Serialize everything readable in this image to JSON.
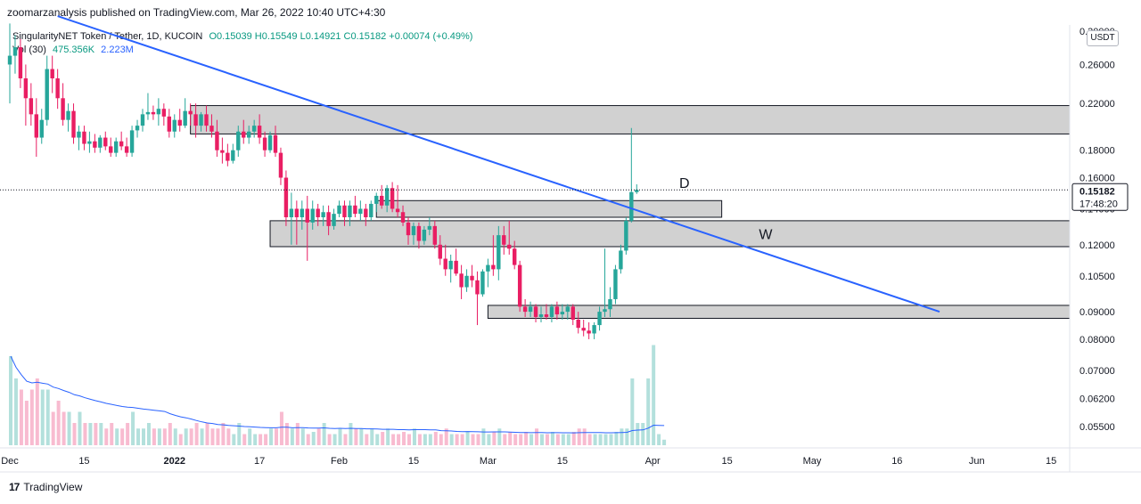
{
  "header": {
    "publisher": "zoomarzanalysis published on TradingView.com, Mar 26, 2022 10:40 UTC+4:30"
  },
  "legend": {
    "symbol": "SingularityNET Token / Tether, 1D, KUCOIN",
    "ohlc": "O0.15039 H0.15549 L0.14921 C0.15182 +0.00074 (+0.49%)",
    "vol_label": "Vol (30)",
    "vol_value": "475.356K",
    "vol_ma": "2.223M"
  },
  "price_axis": {
    "currency": "USDT",
    "last_price": "0.15182",
    "countdown": "17:48:20"
  },
  "footer": {
    "brand": "TradingView",
    "logo": "17"
  },
  "colors": {
    "up": "#26a69a",
    "down": "#e91e63",
    "trendline": "#2962ff",
    "zone": "#d1d1d1"
  },
  "chart_data": {
    "type": "candlestick",
    "title": "SingularityNET Token / Tether, 1D, KUCOIN",
    "y_scale": "log",
    "ylim": [
      0.05,
      0.33
    ],
    "y_ticks": [
      "0.05500",
      "0.06200",
      "0.07000",
      "0.08000",
      "0.09000",
      "0.10500",
      "0.12000",
      "0.14000",
      "0.16000",
      "0.18000",
      "0.22000",
      "0.26000",
      "0.30000"
    ],
    "y_tick_values": [
      0.055,
      0.062,
      0.07,
      0.08,
      0.09,
      0.105,
      0.12,
      0.14,
      0.16,
      0.18,
      0.22,
      0.26,
      0.3
    ],
    "x_ticks": [
      "Dec",
      "15",
      "2022",
      "17",
      "Feb",
      "15",
      "Mar",
      "15",
      "Apr",
      "15",
      "May",
      "16",
      "Jun",
      "15"
    ],
    "x_tick_days": [
      0,
      14,
      31,
      47,
      62,
      76,
      90,
      104,
      121,
      135,
      151,
      167,
      182,
      196
    ],
    "x_start": "2021-12-01",
    "annotations": [
      {
        "text": "D",
        "date": "2022-04-06",
        "price": 0.153
      },
      {
        "text": "W",
        "date": "2022-04-21",
        "price": 0.123
      }
    ],
    "zones": [
      {
        "date_start": "2022-01-04",
        "date_end": "2022-06-30",
        "price_low": 0.193,
        "price_high": 0.218
      },
      {
        "date_start": "2022-02-08",
        "date_end": "2022-04-14",
        "price_low": 0.135,
        "price_high": 0.145
      },
      {
        "date_start": "2022-01-19",
        "date_end": "2022-06-30",
        "price_low": 0.119,
        "price_high": 0.133
      },
      {
        "date_start": "2022-03-01",
        "date_end": "2022-06-30",
        "price_low": 0.0875,
        "price_high": 0.0925
      }
    ],
    "trendline": {
      "start": {
        "date": "2021-12-10",
        "price": 0.32
      },
      "end": {
        "date": "2022-05-25",
        "price": 0.09
      }
    },
    "last_price_line": 0.15182,
    "candles": [
      {
        "date": "2021-12-01",
        "o": 0.26,
        "h": 0.31,
        "l": 0.22,
        "c": 0.27
      },
      {
        "date": "2021-12-02",
        "o": 0.27,
        "h": 0.295,
        "l": 0.25,
        "c": 0.28
      },
      {
        "date": "2021-12-03",
        "o": 0.28,
        "h": 0.29,
        "l": 0.235,
        "c": 0.245
      },
      {
        "date": "2021-12-04",
        "o": 0.245,
        "h": 0.26,
        "l": 0.2,
        "c": 0.225
      },
      {
        "date": "2021-12-05",
        "o": 0.225,
        "h": 0.24,
        "l": 0.2,
        "c": 0.21
      },
      {
        "date": "2021-12-06",
        "o": 0.21,
        "h": 0.225,
        "l": 0.175,
        "c": 0.19
      },
      {
        "date": "2021-12-07",
        "o": 0.19,
        "h": 0.215,
        "l": 0.185,
        "c": 0.205
      },
      {
        "date": "2021-12-08",
        "o": 0.205,
        "h": 0.27,
        "l": 0.2,
        "c": 0.255
      },
      {
        "date": "2021-12-09",
        "o": 0.255,
        "h": 0.27,
        "l": 0.23,
        "c": 0.245
      },
      {
        "date": "2021-12-10",
        "o": 0.245,
        "h": 0.255,
        "l": 0.215,
        "c": 0.225
      },
      {
        "date": "2021-12-11",
        "o": 0.225,
        "h": 0.24,
        "l": 0.2,
        "c": 0.205
      },
      {
        "date": "2021-12-12",
        "o": 0.205,
        "h": 0.22,
        "l": 0.195,
        "c": 0.213
      },
      {
        "date": "2021-12-13",
        "o": 0.213,
        "h": 0.22,
        "l": 0.185,
        "c": 0.19
      },
      {
        "date": "2021-12-14",
        "o": 0.19,
        "h": 0.2,
        "l": 0.18,
        "c": 0.195
      },
      {
        "date": "2021-12-15",
        "o": 0.195,
        "h": 0.2,
        "l": 0.18,
        "c": 0.185
      },
      {
        "date": "2021-12-16",
        "o": 0.185,
        "h": 0.195,
        "l": 0.178,
        "c": 0.187
      },
      {
        "date": "2021-12-17",
        "o": 0.187,
        "h": 0.193,
        "l": 0.178,
        "c": 0.182
      },
      {
        "date": "2021-12-18",
        "o": 0.182,
        "h": 0.192,
        "l": 0.178,
        "c": 0.19
      },
      {
        "date": "2021-12-19",
        "o": 0.19,
        "h": 0.195,
        "l": 0.18,
        "c": 0.183
      },
      {
        "date": "2021-12-20",
        "o": 0.183,
        "h": 0.19,
        "l": 0.175,
        "c": 0.178
      },
      {
        "date": "2021-12-21",
        "o": 0.178,
        "h": 0.19,
        "l": 0.175,
        "c": 0.187
      },
      {
        "date": "2021-12-22",
        "o": 0.187,
        "h": 0.195,
        "l": 0.18,
        "c": 0.183
      },
      {
        "date": "2021-12-23",
        "o": 0.183,
        "h": 0.19,
        "l": 0.175,
        "c": 0.178
      },
      {
        "date": "2021-12-24",
        "o": 0.178,
        "h": 0.2,
        "l": 0.175,
        "c": 0.196
      },
      {
        "date": "2021-12-25",
        "o": 0.196,
        "h": 0.205,
        "l": 0.19,
        "c": 0.2
      },
      {
        "date": "2021-12-26",
        "o": 0.2,
        "h": 0.215,
        "l": 0.195,
        "c": 0.21
      },
      {
        "date": "2021-12-27",
        "o": 0.21,
        "h": 0.23,
        "l": 0.205,
        "c": 0.212
      },
      {
        "date": "2021-12-28",
        "o": 0.212,
        "h": 0.218,
        "l": 0.205,
        "c": 0.21
      },
      {
        "date": "2021-12-29",
        "o": 0.21,
        "h": 0.225,
        "l": 0.2,
        "c": 0.215
      },
      {
        "date": "2021-12-30",
        "o": 0.215,
        "h": 0.22,
        "l": 0.2,
        "c": 0.208
      },
      {
        "date": "2021-12-31",
        "o": 0.208,
        "h": 0.215,
        "l": 0.19,
        "c": 0.195
      },
      {
        "date": "2022-01-01",
        "o": 0.195,
        "h": 0.21,
        "l": 0.19,
        "c": 0.205
      },
      {
        "date": "2022-01-02",
        "o": 0.205,
        "h": 0.215,
        "l": 0.195,
        "c": 0.2
      },
      {
        "date": "2022-01-03",
        "o": 0.2,
        "h": 0.225,
        "l": 0.198,
        "c": 0.213
      },
      {
        "date": "2022-01-04",
        "o": 0.213,
        "h": 0.22,
        "l": 0.2,
        "c": 0.21
      },
      {
        "date": "2022-01-05",
        "o": 0.21,
        "h": 0.22,
        "l": 0.19,
        "c": 0.2
      },
      {
        "date": "2022-01-06",
        "o": 0.2,
        "h": 0.212,
        "l": 0.195,
        "c": 0.21
      },
      {
        "date": "2022-01-07",
        "o": 0.21,
        "h": 0.218,
        "l": 0.195,
        "c": 0.2
      },
      {
        "date": "2022-01-08",
        "o": 0.2,
        "h": 0.21,
        "l": 0.19,
        "c": 0.195
      },
      {
        "date": "2022-01-09",
        "o": 0.195,
        "h": 0.205,
        "l": 0.175,
        "c": 0.18
      },
      {
        "date": "2022-01-10",
        "o": 0.18,
        "h": 0.19,
        "l": 0.17,
        "c": 0.178
      },
      {
        "date": "2022-01-11",
        "o": 0.178,
        "h": 0.185,
        "l": 0.168,
        "c": 0.172
      },
      {
        "date": "2022-01-12",
        "o": 0.172,
        "h": 0.185,
        "l": 0.17,
        "c": 0.18
      },
      {
        "date": "2022-01-13",
        "o": 0.18,
        "h": 0.2,
        "l": 0.175,
        "c": 0.195
      },
      {
        "date": "2022-01-14",
        "o": 0.195,
        "h": 0.205,
        "l": 0.185,
        "c": 0.19
      },
      {
        "date": "2022-01-15",
        "o": 0.19,
        "h": 0.2,
        "l": 0.185,
        "c": 0.195
      },
      {
        "date": "2022-01-16",
        "o": 0.195,
        "h": 0.205,
        "l": 0.19,
        "c": 0.2
      },
      {
        "date": "2022-01-17",
        "o": 0.2,
        "h": 0.21,
        "l": 0.185,
        "c": 0.19
      },
      {
        "date": "2022-01-18",
        "o": 0.19,
        "h": 0.195,
        "l": 0.175,
        "c": 0.18
      },
      {
        "date": "2022-01-19",
        "o": 0.18,
        "h": 0.195,
        "l": 0.178,
        "c": 0.192
      },
      {
        "date": "2022-01-20",
        "o": 0.192,
        "h": 0.2,
        "l": 0.175,
        "c": 0.178
      },
      {
        "date": "2022-01-21",
        "o": 0.178,
        "h": 0.182,
        "l": 0.155,
        "c": 0.16
      },
      {
        "date": "2022-01-22",
        "o": 0.16,
        "h": 0.165,
        "l": 0.13,
        "c": 0.135
      },
      {
        "date": "2022-01-23",
        "o": 0.135,
        "h": 0.15,
        "l": 0.12,
        "c": 0.14
      },
      {
        "date": "2022-01-24",
        "o": 0.14,
        "h": 0.145,
        "l": 0.12,
        "c": 0.135
      },
      {
        "date": "2022-01-25",
        "o": 0.135,
        "h": 0.145,
        "l": 0.128,
        "c": 0.14
      },
      {
        "date": "2022-01-26",
        "o": 0.14,
        "h": 0.148,
        "l": 0.112,
        "c": 0.132
      },
      {
        "date": "2022-01-27",
        "o": 0.132,
        "h": 0.145,
        "l": 0.128,
        "c": 0.14
      },
      {
        "date": "2022-01-28",
        "o": 0.14,
        "h": 0.143,
        "l": 0.13,
        "c": 0.135
      },
      {
        "date": "2022-01-29",
        "o": 0.135,
        "h": 0.142,
        "l": 0.13,
        "c": 0.138
      },
      {
        "date": "2022-01-30",
        "o": 0.138,
        "h": 0.142,
        "l": 0.125,
        "c": 0.13
      },
      {
        "date": "2022-01-31",
        "o": 0.13,
        "h": 0.14,
        "l": 0.128,
        "c": 0.137
      },
      {
        "date": "2022-02-01",
        "o": 0.137,
        "h": 0.145,
        "l": 0.135,
        "c": 0.142
      },
      {
        "date": "2022-02-02",
        "o": 0.142,
        "h": 0.145,
        "l": 0.13,
        "c": 0.135
      },
      {
        "date": "2022-02-03",
        "o": 0.135,
        "h": 0.145,
        "l": 0.13,
        "c": 0.142
      },
      {
        "date": "2022-02-04",
        "o": 0.142,
        "h": 0.148,
        "l": 0.135,
        "c": 0.137
      },
      {
        "date": "2022-02-05",
        "o": 0.137,
        "h": 0.145,
        "l": 0.133,
        "c": 0.14
      },
      {
        "date": "2022-02-06",
        "o": 0.14,
        "h": 0.143,
        "l": 0.13,
        "c": 0.135
      },
      {
        "date": "2022-02-07",
        "o": 0.135,
        "h": 0.145,
        "l": 0.133,
        "c": 0.143
      },
      {
        "date": "2022-02-08",
        "o": 0.143,
        "h": 0.15,
        "l": 0.138,
        "c": 0.148
      },
      {
        "date": "2022-02-09",
        "o": 0.148,
        "h": 0.155,
        "l": 0.14,
        "c": 0.142
      },
      {
        "date": "2022-02-10",
        "o": 0.142,
        "h": 0.155,
        "l": 0.138,
        "c": 0.153
      },
      {
        "date": "2022-02-11",
        "o": 0.153,
        "h": 0.157,
        "l": 0.138,
        "c": 0.14
      },
      {
        "date": "2022-02-12",
        "o": 0.14,
        "h": 0.155,
        "l": 0.135,
        "c": 0.138
      },
      {
        "date": "2022-02-13",
        "o": 0.138,
        "h": 0.142,
        "l": 0.13,
        "c": 0.132
      },
      {
        "date": "2022-02-14",
        "o": 0.132,
        "h": 0.135,
        "l": 0.12,
        "c": 0.125
      },
      {
        "date": "2022-02-15",
        "o": 0.125,
        "h": 0.132,
        "l": 0.12,
        "c": 0.13
      },
      {
        "date": "2022-02-16",
        "o": 0.13,
        "h": 0.132,
        "l": 0.118,
        "c": 0.122
      },
      {
        "date": "2022-02-17",
        "o": 0.122,
        "h": 0.13,
        "l": 0.12,
        "c": 0.128
      },
      {
        "date": "2022-02-18",
        "o": 0.128,
        "h": 0.135,
        "l": 0.125,
        "c": 0.13
      },
      {
        "date": "2022-02-19",
        "o": 0.13,
        "h": 0.133,
        "l": 0.118,
        "c": 0.12
      },
      {
        "date": "2022-02-20",
        "o": 0.12,
        "h": 0.125,
        "l": 0.11,
        "c": 0.113
      },
      {
        "date": "2022-02-21",
        "o": 0.113,
        "h": 0.12,
        "l": 0.105,
        "c": 0.108
      },
      {
        "date": "2022-02-22",
        "o": 0.108,
        "h": 0.115,
        "l": 0.102,
        "c": 0.112
      },
      {
        "date": "2022-02-23",
        "o": 0.112,
        "h": 0.118,
        "l": 0.105,
        "c": 0.106
      },
      {
        "date": "2022-02-24",
        "o": 0.106,
        "h": 0.11,
        "l": 0.095,
        "c": 0.1
      },
      {
        "date": "2022-02-25",
        "o": 0.1,
        "h": 0.108,
        "l": 0.098,
        "c": 0.105
      },
      {
        "date": "2022-02-26",
        "o": 0.105,
        "h": 0.11,
        "l": 0.1,
        "c": 0.103
      },
      {
        "date": "2022-02-27",
        "o": 0.103,
        "h": 0.107,
        "l": 0.085,
        "c": 0.097
      },
      {
        "date": "2022-02-28",
        "o": 0.097,
        "h": 0.108,
        "l": 0.096,
        "c": 0.107
      },
      {
        "date": "2022-03-01",
        "o": 0.107,
        "h": 0.113,
        "l": 0.1,
        "c": 0.11
      },
      {
        "date": "2022-03-02",
        "o": 0.11,
        "h": 0.125,
        "l": 0.105,
        "c": 0.108
      },
      {
        "date": "2022-03-03",
        "o": 0.108,
        "h": 0.13,
        "l": 0.103,
        "c": 0.125
      },
      {
        "date": "2022-03-04",
        "o": 0.125,
        "h": 0.13,
        "l": 0.115,
        "c": 0.12
      },
      {
        "date": "2022-03-05",
        "o": 0.12,
        "h": 0.133,
        "l": 0.115,
        "c": 0.118
      },
      {
        "date": "2022-03-06",
        "o": 0.118,
        "h": 0.122,
        "l": 0.108,
        "c": 0.11
      },
      {
        "date": "2022-03-07",
        "o": 0.11,
        "h": 0.112,
        "l": 0.09,
        "c": 0.092
      },
      {
        "date": "2022-03-08",
        "o": 0.092,
        "h": 0.095,
        "l": 0.088,
        "c": 0.09
      },
      {
        "date": "2022-03-09",
        "o": 0.09,
        "h": 0.094,
        "l": 0.088,
        "c": 0.092
      },
      {
        "date": "2022-03-10",
        "o": 0.092,
        "h": 0.093,
        "l": 0.086,
        "c": 0.088
      },
      {
        "date": "2022-03-11",
        "o": 0.088,
        "h": 0.092,
        "l": 0.086,
        "c": 0.089
      },
      {
        "date": "2022-03-12",
        "o": 0.089,
        "h": 0.093,
        "l": 0.087,
        "c": 0.088
      },
      {
        "date": "2022-03-13",
        "o": 0.088,
        "h": 0.093,
        "l": 0.086,
        "c": 0.092
      },
      {
        "date": "2022-03-14",
        "o": 0.092,
        "h": 0.094,
        "l": 0.087,
        "c": 0.089
      },
      {
        "date": "2022-03-15",
        "o": 0.089,
        "h": 0.093,
        "l": 0.087,
        "c": 0.09
      },
      {
        "date": "2022-03-16",
        "o": 0.09,
        "h": 0.093,
        "l": 0.087,
        "c": 0.092
      },
      {
        "date": "2022-03-17",
        "o": 0.092,
        "h": 0.093,
        "l": 0.085,
        "c": 0.087
      },
      {
        "date": "2022-03-18",
        "o": 0.087,
        "h": 0.09,
        "l": 0.082,
        "c": 0.084
      },
      {
        "date": "2022-03-19",
        "o": 0.084,
        "h": 0.087,
        "l": 0.081,
        "c": 0.083
      },
      {
        "date": "2022-03-20",
        "o": 0.083,
        "h": 0.086,
        "l": 0.08,
        "c": 0.082
      },
      {
        "date": "2022-03-21",
        "o": 0.082,
        "h": 0.086,
        "l": 0.08,
        "c": 0.085
      },
      {
        "date": "2022-03-22",
        "o": 0.085,
        "h": 0.092,
        "l": 0.083,
        "c": 0.09
      },
      {
        "date": "2022-03-23",
        "o": 0.09,
        "h": 0.118,
        "l": 0.088,
        "c": 0.091
      },
      {
        "date": "2022-03-24",
        "o": 0.091,
        "h": 0.1,
        "l": 0.088,
        "c": 0.095
      },
      {
        "date": "2022-03-25",
        "o": 0.095,
        "h": 0.11,
        "l": 0.093,
        "c": 0.108
      },
      {
        "date": "2022-03-26",
        "o": 0.108,
        "h": 0.12,
        "l": 0.106,
        "c": 0.117
      },
      {
        "date": "2022-03-27",
        "o": 0.117,
        "h": 0.135,
        "l": 0.115,
        "c": 0.133
      },
      {
        "date": "2022-03-28",
        "o": 0.133,
        "h": 0.198,
        "l": 0.132,
        "c": 0.15039
      },
      {
        "date": "2022-03-29",
        "o": 0.15039,
        "h": 0.15549,
        "l": 0.14921,
        "c": 0.15182
      }
    ],
    "volume": [
      8,
      6,
      5,
      4,
      5,
      6,
      5,
      5,
      3,
      4,
      3,
      3,
      2,
      3,
      2,
      2,
      2,
      2,
      1.5,
      2,
      1.5,
      1.5,
      2,
      3,
      1.5,
      1.5,
      2,
      1.5,
      1.5,
      1.5,
      2,
      1.5,
      1,
      1.5,
      1.5,
      2,
      1.5,
      2,
      1.5,
      1.5,
      2,
      1.5,
      1,
      2,
      1,
      1.5,
      1,
      1,
      1,
      1.5,
      1.5,
      3,
      2,
      1.5,
      2,
      1.5,
      1,
      1.2,
      1.5,
      2,
      1,
      1,
      1.5,
      1,
      2,
      1.5,
      1.5,
      1,
      1.5,
      1,
      1.2,
      1.5,
      1,
      1,
      1.2,
      1,
      1.5,
      1,
      1,
      1,
      1.2,
      1,
      1.5,
      1,
      1,
      1,
      1.2,
      1,
      1,
      1.5,
      1,
      1.2,
      1.5,
      1,
      1.2,
      1,
      1,
      1.2,
      1,
      1.5,
      1,
      1,
      1.2,
      1,
      1,
      1,
      1.2,
      1.5,
      1.5,
      1,
      1,
      1,
      1,
      1,
      1.2,
      1.5,
      1.5,
      6,
      2,
      2,
      6,
      9,
      1,
      0.5
    ]
  }
}
